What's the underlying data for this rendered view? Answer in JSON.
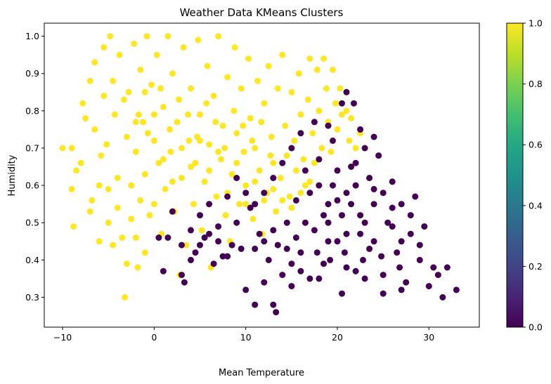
{
  "chart_data": {
    "type": "scatter",
    "title": "Weather Data KMeans Clusters",
    "xlabel": "Mean Temperature",
    "ylabel": "Humidity",
    "xlim": [
      -12,
      35.5
    ],
    "ylim": [
      0.22,
      1.035
    ],
    "xticks": [
      -10,
      0,
      10,
      20,
      30
    ],
    "yticks": [
      0.3,
      0.4,
      0.5,
      0.6,
      0.7,
      0.8,
      0.9,
      1.0
    ],
    "xtick_labels": [
      "−10",
      "0",
      "10",
      "20",
      "30"
    ],
    "ytick_labels": [
      "0.3",
      "0.4",
      "0.5",
      "0.6",
      "0.7",
      "0.8",
      "0.9",
      "1.0"
    ],
    "colorbar": {
      "min": 0.0,
      "max": 1.0,
      "ticks": [
        0.0,
        0.2,
        0.4,
        0.6,
        0.8,
        1.0
      ],
      "tick_labels": [
        "0.0",
        "0.2",
        "0.4",
        "0.6",
        "0.8",
        "1.0"
      ],
      "colormap": "viridis"
    },
    "series": [
      {
        "cluster": 1,
        "color": "#fde725",
        "points": [
          [
            -10,
            0.7
          ],
          [
            -9,
            0.7
          ],
          [
            -9,
            0.59
          ],
          [
            -8.8,
            0.49
          ],
          [
            -8.5,
            0.64
          ],
          [
            -8,
            0.66
          ],
          [
            -7.8,
            0.82
          ],
          [
            -7.5,
            0.78
          ],
          [
            -7,
            0.88
          ],
          [
            -7,
            0.53
          ],
          [
            -6.8,
            0.56
          ],
          [
            -6.5,
            0.75
          ],
          [
            -6.5,
            0.93
          ],
          [
            -6,
            0.6
          ],
          [
            -6,
            0.45
          ],
          [
            -5.8,
            0.68
          ],
          [
            -5.5,
            0.97
          ],
          [
            -5.5,
            0.84
          ],
          [
            -5.2,
            0.71
          ],
          [
            -5,
            0.59
          ],
          [
            -5,
            0.5
          ],
          [
            -4.8,
            1.0
          ],
          [
            -4.5,
            0.88
          ],
          [
            -4.5,
            0.44
          ],
          [
            -4.3,
            0.79
          ],
          [
            -4,
            0.62
          ],
          [
            -4,
            0.54
          ],
          [
            -3.8,
            0.95
          ],
          [
            -3.5,
            0.46
          ],
          [
            -3.2,
            0.3
          ],
          [
            -3,
            0.39
          ],
          [
            -3,
            0.73
          ],
          [
            -2.8,
            0.85
          ],
          [
            -2.5,
            0.6
          ],
          [
            -2.5,
            0.51
          ],
          [
            -2.2,
            0.98
          ],
          [
            -2,
            0.46
          ],
          [
            -2,
            0.69
          ],
          [
            -1.8,
            0.38
          ],
          [
            -1.5,
            0.91
          ],
          [
            -1.5,
            0.56
          ],
          [
            -1.2,
            0.77
          ],
          [
            -1,
            0.42
          ],
          [
            -1,
            0.63
          ],
          [
            -0.8,
            1.0
          ],
          [
            -0.5,
            0.52
          ],
          [
            -0.3,
            0.87
          ],
          [
            0,
            0.72
          ],
          [
            0,
            0.55
          ],
          [
            0.3,
            0.95
          ],
          [
            0.5,
            0.66
          ],
          [
            0.8,
            0.47
          ],
          [
            1,
            0.81
          ],
          [
            1.2,
            0.59
          ],
          [
            1.5,
            1.0
          ],
          [
            1.8,
            0.69
          ],
          [
            2,
            0.9
          ],
          [
            2.2,
            0.53
          ],
          [
            2.5,
            0.77
          ],
          [
            2.8,
            0.36
          ],
          [
            3,
            0.62
          ],
          [
            3.2,
            0.97
          ],
          [
            3.5,
            0.44
          ],
          [
            3.8,
            0.72
          ],
          [
            4,
            0.86
          ],
          [
            4.3,
            0.55
          ],
          [
            4.5,
            0.66
          ],
          [
            4.8,
            0.99
          ],
          [
            5,
            0.79
          ],
          [
            5.2,
            0.48
          ],
          [
            5.5,
            0.61
          ],
          [
            5.8,
            0.92
          ],
          [
            6,
            0.71
          ],
          [
            6.2,
            0.38
          ],
          [
            6.5,
            0.84
          ],
          [
            6.8,
            0.57
          ],
          [
            7,
            1.0
          ],
          [
            7.3,
            0.67
          ],
          [
            7.5,
            0.76
          ],
          [
            7.8,
            0.52
          ],
          [
            8,
            0.89
          ],
          [
            8.3,
            0.45
          ],
          [
            8.5,
            0.63
          ],
          [
            8.8,
            0.97
          ],
          [
            9,
            0.74
          ],
          [
            9.3,
            0.55
          ],
          [
            9.5,
            0.86
          ],
          [
            9.8,
            0.69
          ],
          [
            10,
            0.6
          ],
          [
            10.3,
            0.94
          ],
          [
            10.5,
            0.78
          ],
          [
            10.8,
            0.51
          ],
          [
            11,
            0.7
          ],
          [
            11.3,
            0.88
          ],
          [
            11.5,
            0.64
          ],
          [
            11.8,
            0.47
          ],
          [
            12,
            0.82
          ],
          [
            12.3,
            0.58
          ],
          [
            12.5,
            0.92
          ],
          [
            12.8,
            0.73
          ],
          [
            13,
            0.66
          ],
          [
            13.3,
            0.53
          ],
          [
            13.5,
            0.86
          ],
          [
            13.8,
            0.62
          ],
          [
            14,
            0.95
          ],
          [
            14.3,
            0.76
          ],
          [
            14.5,
            0.68
          ],
          [
            14.8,
            0.57
          ],
          [
            15,
            0.85
          ],
          [
            15.3,
            0.72
          ],
          [
            15.5,
            0.64
          ],
          [
            15.8,
            0.9
          ],
          [
            16,
            0.79
          ],
          [
            16.3,
            0.67
          ],
          [
            16.5,
            0.6
          ],
          [
            16.8,
            0.83
          ],
          [
            17,
            0.94
          ],
          [
            17.3,
            0.74
          ],
          [
            17.5,
            0.66
          ],
          [
            17.8,
            0.91
          ],
          [
            18,
            0.8
          ],
          [
            18.3,
            0.7
          ],
          [
            18.5,
            0.94
          ],
          [
            18.8,
            0.86
          ],
          [
            19,
            0.77
          ],
          [
            19.3,
            0.69
          ],
          [
            19.5,
            0.91
          ],
          [
            19.8,
            0.82
          ],
          [
            20,
            0.75
          ],
          [
            20.3,
            0.86
          ],
          [
            20.5,
            0.79
          ],
          [
            21,
            0.8
          ],
          [
            21.3,
            0.72
          ],
          [
            21.5,
            0.78
          ],
          [
            22,
            0.7
          ],
          [
            22.5,
            0.74
          ],
          [
            -3.3,
            0.83
          ],
          [
            -1.7,
            0.79
          ],
          [
            -0.7,
            0.74
          ],
          [
            0.7,
            0.86
          ],
          [
            1.7,
            0.75
          ],
          [
            2.7,
            0.83
          ],
          [
            3.7,
            0.79
          ],
          [
            4.7,
            0.73
          ],
          [
            5.7,
            0.82
          ],
          [
            6.7,
            0.77
          ],
          [
            7.7,
            0.7
          ],
          [
            8.7,
            0.8
          ],
          [
            9.7,
            0.76
          ],
          [
            10.7,
            0.72
          ],
          [
            11.7,
            0.77
          ],
          [
            12.7,
            0.68
          ],
          [
            3,
            0.7
          ],
          [
            4,
            0.65
          ],
          [
            5,
            0.72
          ],
          [
            6,
            0.64
          ],
          [
            7,
            0.69
          ],
          [
            8,
            0.58
          ],
          [
            9,
            0.66
          ],
          [
            10,
            0.55
          ],
          [
            11,
            0.61
          ],
          [
            12,
            0.56
          ],
          [
            13,
            0.59
          ],
          [
            14,
            0.56
          ],
          [
            15,
            0.54
          ],
          [
            16,
            0.58
          ],
          [
            17,
            0.61
          ],
          [
            2,
            0.61
          ],
          [
            1,
            0.67
          ],
          [
            0,
            0.79
          ],
          [
            -1,
            0.85
          ],
          [
            -2,
            0.77
          ]
        ]
      },
      {
        "cluster": 0,
        "color": "#440154",
        "points": [
          [
            0.5,
            0.46
          ],
          [
            1,
            0.37
          ],
          [
            1.5,
            0.46
          ],
          [
            2,
            0.53
          ],
          [
            3,
            0.36
          ],
          [
            3.3,
            0.34
          ],
          [
            4,
            0.48
          ],
          [
            4.5,
            0.42
          ],
          [
            5,
            0.52
          ],
          [
            5.5,
            0.46
          ],
          [
            6,
            0.55
          ],
          [
            6.5,
            0.39
          ],
          [
            7,
            0.49
          ],
          [
            7.5,
            0.41
          ],
          [
            8,
            0.57
          ],
          [
            8.5,
            0.44
          ],
          [
            9,
            0.5
          ],
          [
            9.5,
            0.43
          ],
          [
            10,
            0.32
          ],
          [
            10.5,
            0.54
          ],
          [
            11,
            0.28
          ],
          [
            11.5,
            0.47
          ],
          [
            12,
            0.34
          ],
          [
            12.5,
            0.4
          ],
          [
            13,
            0.28
          ],
          [
            13.3,
            0.26
          ],
          [
            13.5,
            0.44
          ],
          [
            14,
            0.36
          ],
          [
            14.5,
            0.5
          ],
          [
            15,
            0.33
          ],
          [
            15.5,
            0.56
          ],
          [
            16,
            0.42
          ],
          [
            16.5,
            0.64
          ],
          [
            17,
            0.35
          ],
          [
            17.5,
            0.48
          ],
          [
            18,
            0.67
          ],
          [
            18.5,
            0.39
          ],
          [
            19,
            0.55
          ],
          [
            19.5,
            0.72
          ],
          [
            20,
            0.45
          ],
          [
            20.5,
            0.31
          ],
          [
            21,
            0.58
          ],
          [
            21.5,
            0.65
          ],
          [
            22,
            0.37
          ],
          [
            22.5,
            0.52
          ],
          [
            23,
            0.7
          ],
          [
            23.5,
            0.43
          ],
          [
            24,
            0.59
          ],
          [
            24.5,
            0.68
          ],
          [
            25,
            0.36
          ],
          [
            25.5,
            0.5
          ],
          [
            26,
            0.61
          ],
          [
            26.5,
            0.42
          ],
          [
            27,
            0.55
          ],
          [
            27.5,
            0.34
          ],
          [
            28,
            0.47
          ],
          [
            28.5,
            0.57
          ],
          [
            29,
            0.4
          ],
          [
            29.5,
            0.49
          ],
          [
            30,
            0.33
          ],
          [
            30.5,
            0.38
          ],
          [
            31,
            0.36
          ],
          [
            31.5,
            0.3
          ],
          [
            32,
            0.38
          ],
          [
            33,
            0.32
          ],
          [
            21,
            0.85
          ],
          [
            21.8,
            0.82
          ],
          [
            20.5,
            0.82
          ],
          [
            22.5,
            0.75
          ],
          [
            24,
            0.73
          ],
          [
            19,
            0.76
          ],
          [
            17.5,
            0.77
          ],
          [
            16,
            0.74
          ],
          [
            15,
            0.7
          ],
          [
            14,
            0.66
          ],
          [
            13,
            0.62
          ],
          [
            12,
            0.58
          ],
          [
            11,
            0.55
          ],
          [
            10,
            0.58
          ],
          [
            9,
            0.62
          ],
          [
            18,
            0.6
          ],
          [
            19,
            0.5
          ],
          [
            20,
            0.56
          ],
          [
            21,
            0.47
          ],
          [
            22,
            0.6
          ],
          [
            23,
            0.5
          ],
          [
            24,
            0.55
          ],
          [
            25,
            0.58
          ],
          [
            26,
            0.49
          ],
          [
            27,
            0.45
          ],
          [
            18.5,
            0.52
          ],
          [
            19.5,
            0.6
          ],
          [
            20.5,
            0.52
          ],
          [
            21.5,
            0.55
          ],
          [
            22.5,
            0.47
          ],
          [
            23.5,
            0.62
          ],
          [
            17,
            0.58
          ],
          [
            16.5,
            0.5
          ],
          [
            15.5,
            0.46
          ],
          [
            14.5,
            0.43
          ],
          [
            20,
            0.64
          ],
          [
            22,
            0.66
          ],
          [
            24,
            0.45
          ],
          [
            26,
            0.54
          ],
          [
            28,
            0.52
          ],
          [
            29,
            0.44
          ],
          [
            17.8,
            0.42
          ],
          [
            19.2,
            0.4
          ],
          [
            20.8,
            0.42
          ],
          [
            22.8,
            0.4
          ],
          [
            24.8,
            0.41
          ],
          [
            26.8,
            0.38
          ],
          [
            13,
            0.48
          ],
          [
            12,
            0.45
          ],
          [
            11,
            0.43
          ],
          [
            8,
            0.41
          ],
          [
            7,
            0.45
          ],
          [
            6,
            0.47
          ],
          [
            5,
            0.44
          ],
          [
            4,
            0.4
          ],
          [
            3,
            0.44
          ],
          [
            21,
            0.38
          ],
          [
            23,
            0.35
          ],
          [
            25,
            0.31
          ],
          [
            27,
            0.32
          ],
          [
            19,
            0.45
          ],
          [
            18,
            0.35
          ],
          [
            16,
            0.37
          ],
          [
            15,
            0.39
          ]
        ]
      }
    ]
  }
}
